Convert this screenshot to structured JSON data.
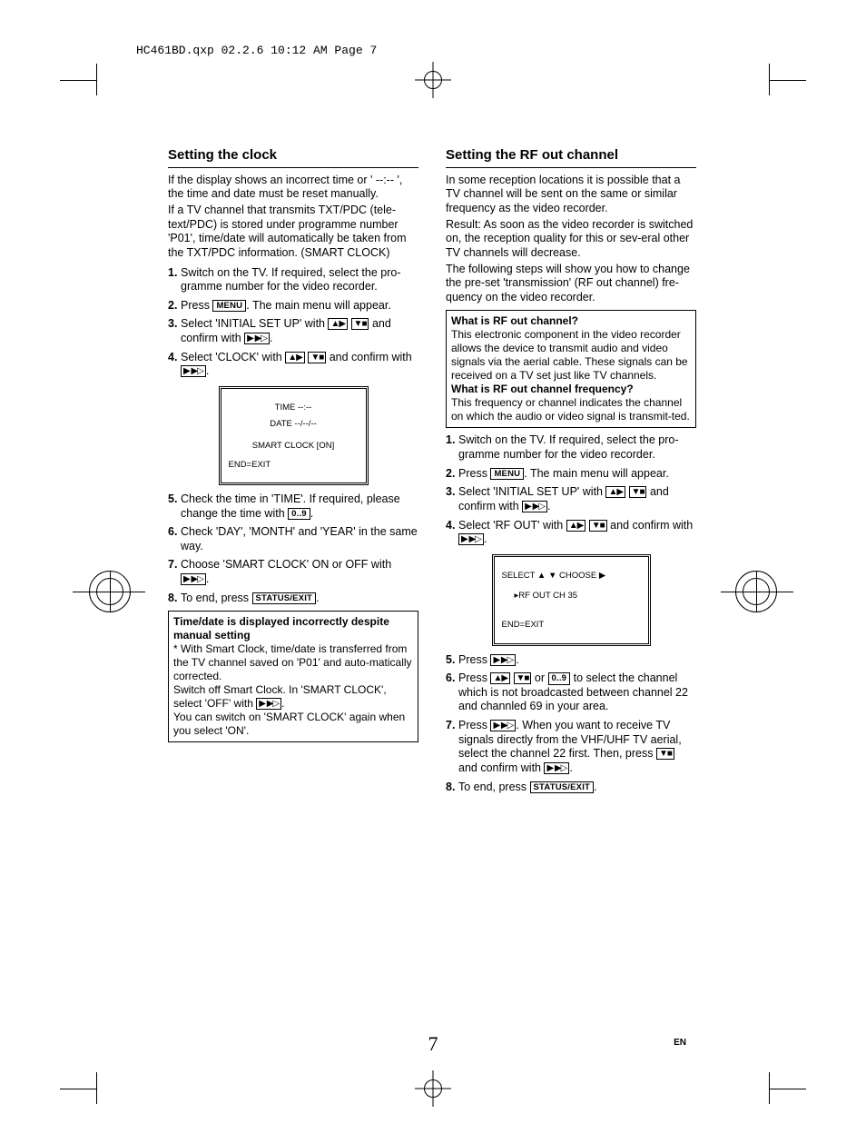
{
  "header": "HC461BD.qxp  02.2.6 10:12 AM  Page 7",
  "page_number": "7",
  "language_code": "EN",
  "buttons": {
    "menu": "MENU",
    "up": "▲▶",
    "down": "▼■",
    "right": "▶ ▶▷",
    "digits": "0..9",
    "status": "STATUS/EXIT"
  },
  "left": {
    "heading": "Setting the clock",
    "intro1": "If the display shows an incorrect time or ' --:-- ', the time and date must be reset manually.",
    "intro2": "If a TV channel that transmits TXT/PDC (tele-text/PDC) is stored under programme number 'P01', time/date will automatically be taken from the TXT/PDC information. (SMART CLOCK)",
    "steps": [
      "Switch on the TV. If required, select the pro-gramme number for the video recorder.",
      "Press {MENU}. The main menu will appear.",
      "Select 'INITIAL SET UP' with {UP} {DOWN} and confirm with {RIGHT}.",
      "Select 'CLOCK' with {UP} {DOWN} and confirm with {RIGHT}."
    ],
    "screen": {
      "line1": "TIME  --:--",
      "line2": "DATE  --/--/--",
      "line3": "SMART CLOCK [ON]",
      "line4": "END=EXIT"
    },
    "steps2": [
      "Check the time in 'TIME'. If required, please change the time with {DIGITS}.",
      "Check 'DAY', 'MONTH' and 'YEAR' in the same way.",
      "Choose 'SMART CLOCK' ON or OFF with {RIGHT}.",
      "To end, press {STATUS}."
    ],
    "box": {
      "title": "Time/date is displayed incorrectly despite manual setting",
      "p1": "* With Smart Clock, time/date is transferred from the TV channel saved on 'P01' and auto-matically corrected.",
      "p2_a": "Switch off Smart Clock. In 'SMART CLOCK', select 'OFF' with ",
      "p2_b": ".",
      "p3": "You can switch on 'SMART CLOCK' again when you select 'ON'."
    }
  },
  "right": {
    "heading": "Setting the RF out channel",
    "intro1": "In some reception locations it is possible that a TV channel will be sent on the same or similar frequency as the video recorder.",
    "intro2": "Result: As soon as the video recorder is switched on, the reception quality for this or sev-eral other TV channels will decrease.",
    "intro3": "The following steps will show you how to change the pre-set 'transmission' (RF out channel) fre-quency on the video recorder.",
    "box": {
      "q1": "What is RF out channel?",
      "a1": "This electronic component in the video recorder allows the device to transmit audio and video signals via the aerial cable. These signals can be received on a TV set just like TV channels.",
      "q2": "What is RF out channel frequency?",
      "a2": "This frequency or channel indicates the channel on which the audio or video signal is transmit-ted."
    },
    "steps": [
      "Switch on the TV. If required, select the pro-gramme number for the video recorder.",
      "Press {MENU}. The main menu will appear.",
      "Select 'INITIAL SET UP' with {UP} {DOWN}  and confirm with {RIGHT}.",
      "Select 'RF OUT' with {UP} {DOWN} and confirm with {RIGHT}."
    ],
    "screen": {
      "line1": "SELECT ▲ ▼  CHOOSE ▶",
      "line2": "▸RF OUT CH     35",
      "line3": "END=EXIT"
    },
    "steps2": [
      "Press {RIGHT}.",
      "Press {UP} {DOWN} or {DIGITS} to select the channel which is not broadcasted between channel 22 and channled 69 in your area.",
      "Press {RIGHT}. When you want to receive TV signals directly from the VHF/UHF TV aerial, select the channel 22 first. Then, press {DOWN} and confirm with {RIGHT}.",
      "To end, press {STATUS}."
    ]
  }
}
